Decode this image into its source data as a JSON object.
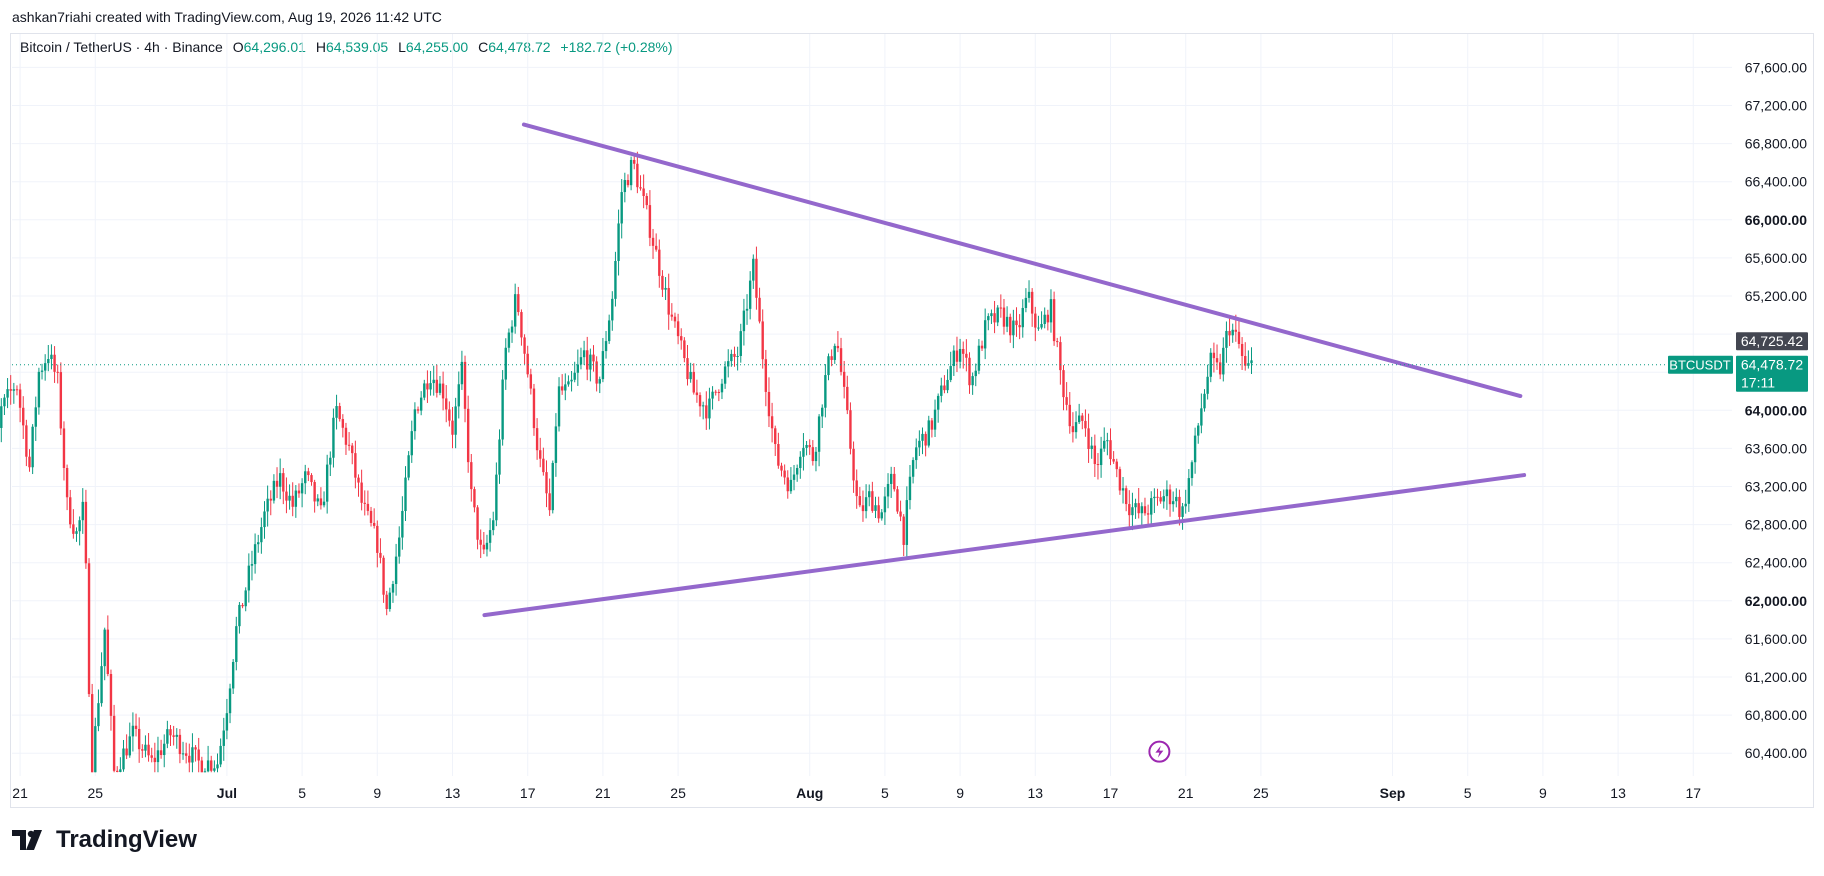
{
  "credit": "ashkan7riahi created with TradingView.com, Aug 19, 2026 11:42 UTC",
  "legend": {
    "symbol": "Bitcoin / TetherUS · 4h · Binance",
    "open_label": "O",
    "open": "64,296.01",
    "high_label": "H",
    "high": "64,539.05",
    "low_label": "L",
    "low": "64,255.00",
    "close_label": "C",
    "close": "64,478.72",
    "change": "+182.72 (+0.28%)"
  },
  "brand": {
    "name": "TradingView",
    "icon": "tradingview-logo-icon"
  },
  "colors": {
    "up": "#089981",
    "down": "#f23645",
    "trendline": "#9468cc",
    "grid": "#f0f3fa",
    "price_tag": "#089981",
    "secondary_tag": "#434651"
  },
  "chart_data": {
    "type": "candlestick",
    "timeframe": "4h",
    "ylim": [
      60200,
      67900
    ],
    "y_ticks": [
      60400,
      60800,
      61200,
      61600,
      62000,
      62400,
      62800,
      63200,
      63600,
      64000,
      64400,
      64800,
      65200,
      65600,
      66000,
      66400,
      66800,
      67200,
      67600
    ],
    "y_tick_labels": [
      "60,400.00",
      "60,800.00",
      "61,200.00",
      "61,600.00",
      "62,000.00",
      "62,400.00",
      "62,800.00",
      "63,200.00",
      "63,600.00",
      "64,000.00",
      "",
      "",
      "65,200.00",
      "65,600.00",
      "66,000.00",
      "66,400.00",
      "66,800.00",
      "67,200.00",
      "67,600.00"
    ],
    "bold_ticks": [
      "62,000.00",
      "64,000.00",
      "66,000.00"
    ],
    "x_tick_labels": [
      {
        "label": "21",
        "day": -11
      },
      {
        "label": "25",
        "day": -7
      },
      {
        "label": "Jul",
        "day": 0,
        "bold": true
      },
      {
        "label": "5",
        "day": 4
      },
      {
        "label": "9",
        "day": 8
      },
      {
        "label": "13",
        "day": 12
      },
      {
        "label": "17",
        "day": 16
      },
      {
        "label": "21",
        "day": 20
      },
      {
        "label": "25",
        "day": 24
      },
      {
        "label": "Aug",
        "day": 31,
        "bold": true
      },
      {
        "label": "5",
        "day": 35
      },
      {
        "label": "9",
        "day": 39
      },
      {
        "label": "13",
        "day": 43
      },
      {
        "label": "17",
        "day": 47
      },
      {
        "label": "21",
        "day": 51
      },
      {
        "label": "25",
        "day": 55
      },
      {
        "label": "Sep",
        "day": 62,
        "bold": true
      },
      {
        "label": "5",
        "day": 66
      },
      {
        "label": "9",
        "day": 70
      },
      {
        "label": "13",
        "day": 74
      },
      {
        "label": "17",
        "day": 78
      }
    ],
    "path": [
      [
        -13,
        62800
      ],
      [
        -12.5,
        63300
      ],
      [
        -12,
        64000
      ],
      [
        -11.2,
        64300
      ],
      [
        -10.5,
        63400
      ],
      [
        -10,
        64400
      ],
      [
        -9.5,
        64600
      ],
      [
        -9,
        64300
      ],
      [
        -8.5,
        63000
      ],
      [
        -8,
        62700
      ],
      [
        -7.6,
        63000
      ],
      [
        -7.2,
        60200
      ],
      [
        -6.5,
        61700
      ],
      [
        -6,
        60200
      ],
      [
        -5,
        60600
      ],
      [
        -4,
        60300
      ],
      [
        -3,
        60600
      ],
      [
        -1.5,
        60300
      ],
      [
        -0.5,
        60300
      ],
      [
        0,
        60900
      ],
      [
        0.5,
        61700
      ],
      [
        1.2,
        62300
      ],
      [
        2,
        62900
      ],
      [
        2.8,
        63300
      ],
      [
        3.5,
        63000
      ],
      [
        4.2,
        63300
      ],
      [
        5,
        62900
      ],
      [
        5.8,
        64000
      ],
      [
        6.5,
        63600
      ],
      [
        7.2,
        63000
      ],
      [
        8,
        62600
      ],
      [
        8.5,
        61900
      ],
      [
        9.2,
        62700
      ],
      [
        10,
        64000
      ],
      [
        10.8,
        64400
      ],
      [
        11.5,
        64200
      ],
      [
        12,
        63800
      ],
      [
        12.5,
        64400
      ],
      [
        13,
        63100
      ],
      [
        13.6,
        62400
      ],
      [
        14.2,
        62900
      ],
      [
        14.8,
        64600
      ],
      [
        15.4,
        65200
      ],
      [
        16,
        64400
      ],
      [
        16.6,
        63500
      ],
      [
        17.2,
        62900
      ],
      [
        17.6,
        64200
      ],
      [
        18.2,
        64200
      ],
      [
        19,
        64600
      ],
      [
        19.8,
        64300
      ],
      [
        20.5,
        65200
      ],
      [
        21,
        66300
      ],
      [
        21.6,
        66600
      ],
      [
        22.4,
        66000
      ],
      [
        23,
        65500
      ],
      [
        23.6,
        65000
      ],
      [
        24.2,
        64600
      ],
      [
        24.8,
        64200
      ],
      [
        25.6,
        64000
      ],
      [
        26.4,
        64400
      ],
      [
        27.2,
        64600
      ],
      [
        28,
        65500
      ],
      [
        28.6,
        64400
      ],
      [
        29.2,
        63500
      ],
      [
        30,
        63200
      ],
      [
        30.6,
        63700
      ],
      [
        31.2,
        63500
      ],
      [
        31.8,
        64300
      ],
      [
        32.4,
        64800
      ],
      [
        33,
        63900
      ],
      [
        33.6,
        62900
      ],
      [
        34.2,
        63100
      ],
      [
        34.8,
        62900
      ],
      [
        35.4,
        63300
      ],
      [
        36,
        62700
      ],
      [
        36.6,
        63600
      ],
      [
        37.4,
        63800
      ],
      [
        38.2,
        64300
      ],
      [
        39,
        64700
      ],
      [
        39.6,
        64300
      ],
      [
        40.4,
        64900
      ],
      [
        41.2,
        65000
      ],
      [
        42,
        64800
      ],
      [
        42.6,
        65200
      ],
      [
        43.2,
        64800
      ],
      [
        43.8,
        65100
      ],
      [
        44.4,
        64300
      ],
      [
        45,
        63800
      ],
      [
        45.6,
        63900
      ],
      [
        46.2,
        63400
      ],
      [
        46.8,
        63700
      ],
      [
        47.4,
        63300
      ],
      [
        48,
        63000
      ],
      [
        48.6,
        62900
      ],
      [
        49.2,
        63000
      ],
      [
        49.8,
        63100
      ],
      [
        50.4,
        63100
      ],
      [
        50.8,
        62900
      ],
      [
        51.3,
        63400
      ],
      [
        51.8,
        64000
      ],
      [
        52.3,
        64500
      ],
      [
        52.8,
        64400
      ],
      [
        53.3,
        64900
      ],
      [
        53.8,
        64700
      ],
      [
        54.2,
        64400
      ],
      [
        54.5,
        64479
      ]
    ],
    "trendlines": [
      {
        "name": "",
        "from": {
          "day": 15.8,
          "price": 67000
        },
        "to": {
          "day": 68.8,
          "price": 64150
        }
      },
      {
        "name": "",
        "from": {
          "day": 13.7,
          "price": 61850
        },
        "to": {
          "day": 69,
          "price": 63320
        }
      }
    ],
    "last_price": {
      "label": "BTCUSDT",
      "price": "64,478.72",
      "countdown": "17:11",
      "value": 64478.72
    },
    "secondary_price": {
      "price": "64,725.42",
      "value": 64725.42
    },
    "news_icon": {
      "name": "lightning-icon",
      "day": 49.6,
      "price": 60500
    }
  }
}
